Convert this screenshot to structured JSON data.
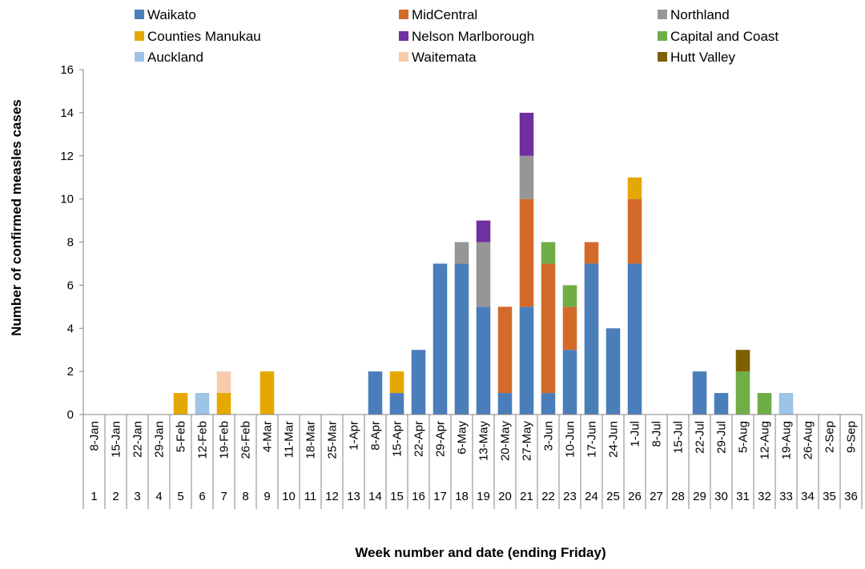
{
  "chart_data": {
    "type": "bar",
    "stacked": true,
    "title": "",
    "ylabel": "Number of confirmed measles cases",
    "xlabel": "Week number and date (ending Friday)",
    "ylim": [
      0,
      16
    ],
    "yticks": [
      0,
      2,
      4,
      6,
      8,
      10,
      12,
      14,
      16
    ],
    "grid": false,
    "legend_position": "top",
    "categories": [
      "8-Jan",
      "15-Jan",
      "22-Jan",
      "29-Jan",
      "5-Feb",
      "12-Feb",
      "19-Feb",
      "26-Feb",
      "4-Mar",
      "11-Mar",
      "18-Mar",
      "25-Mar",
      "1-Apr",
      "8-Apr",
      "15-Apr",
      "22-Apr",
      "29-Apr",
      "6-May",
      "13-May",
      "20-May",
      "27-May",
      "3-Jun",
      "10-Jun",
      "17-Jun",
      "24-Jun",
      "1-Jul",
      "8-Jul",
      "15-Jul",
      "22-Jul",
      "29-Jul",
      "5-Aug",
      "12-Aug",
      "19-Aug",
      "26-Aug",
      "2-Sep",
      "9-Sep"
    ],
    "week_numbers": [
      "1",
      "2",
      "3",
      "4",
      "5",
      "6",
      "7",
      "8",
      "9",
      "10",
      "11",
      "12",
      "13",
      "14",
      "15",
      "16",
      "17",
      "18",
      "19",
      "20",
      "21",
      "22",
      "23",
      "24",
      "25",
      "26",
      "27",
      "28",
      "29",
      "30",
      "31",
      "32",
      "33",
      "34",
      "35",
      "36"
    ],
    "series": [
      {
        "name": "Waikato",
        "color": "#4A7EBB",
        "values": [
          0,
          0,
          0,
          0,
          0,
          0,
          0,
          0,
          0,
          0,
          0,
          0,
          0,
          2,
          1,
          3,
          7,
          7,
          5,
          1,
          5,
          1,
          3,
          7,
          4,
          7,
          0,
          0,
          2,
          1,
          0,
          0,
          0,
          0,
          0,
          0
        ]
      },
      {
        "name": "MidCentral",
        "color": "#D46A2A",
        "values": [
          0,
          0,
          0,
          0,
          0,
          0,
          0,
          0,
          0,
          0,
          0,
          0,
          0,
          0,
          0,
          0,
          0,
          0,
          0,
          4,
          5,
          6,
          2,
          1,
          0,
          3,
          0,
          0,
          0,
          0,
          0,
          0,
          0,
          0,
          0,
          0
        ]
      },
      {
        "name": "Northland",
        "color": "#969696",
        "values": [
          0,
          0,
          0,
          0,
          0,
          0,
          0,
          0,
          0,
          0,
          0,
          0,
          0,
          0,
          0,
          0,
          0,
          1,
          3,
          0,
          2,
          0,
          0,
          0,
          0,
          0,
          0,
          0,
          0,
          0,
          0,
          0,
          0,
          0,
          0,
          0
        ]
      },
      {
        "name": "Counties Manukau",
        "color": "#E5A800",
        "values": [
          0,
          0,
          0,
          0,
          1,
          0,
          1,
          0,
          2,
          0,
          0,
          0,
          0,
          0,
          1,
          0,
          0,
          0,
          0,
          0,
          0,
          0,
          0,
          0,
          0,
          1,
          0,
          0,
          0,
          0,
          0,
          0,
          0,
          0,
          0,
          0
        ]
      },
      {
        "name": "Nelson Marlborough",
        "color": "#7030A0",
        "values": [
          0,
          0,
          0,
          0,
          0,
          0,
          0,
          0,
          0,
          0,
          0,
          0,
          0,
          0,
          0,
          0,
          0,
          0,
          1,
          0,
          2,
          0,
          0,
          0,
          0,
          0,
          0,
          0,
          0,
          0,
          0,
          0,
          0,
          0,
          0,
          0
        ]
      },
      {
        "name": "Capital and Coast",
        "color": "#70AD47",
        "values": [
          0,
          0,
          0,
          0,
          0,
          0,
          0,
          0,
          0,
          0,
          0,
          0,
          0,
          0,
          0,
          0,
          0,
          0,
          0,
          0,
          0,
          1,
          1,
          0,
          0,
          0,
          0,
          0,
          0,
          0,
          2,
          1,
          0,
          0,
          0,
          0
        ]
      },
      {
        "name": "Auckland",
        "color": "#9DC3E6",
        "values": [
          0,
          0,
          0,
          0,
          0,
          1,
          0,
          0,
          0,
          0,
          0,
          0,
          0,
          0,
          0,
          0,
          0,
          0,
          0,
          0,
          0,
          0,
          0,
          0,
          0,
          0,
          0,
          0,
          0,
          0,
          0,
          0,
          1,
          0,
          0,
          0
        ]
      },
      {
        "name": "Waitemata",
        "color": "#F8CBAD",
        "values": [
          0,
          0,
          0,
          0,
          0,
          0,
          1,
          0,
          0,
          0,
          0,
          0,
          0,
          0,
          0,
          0,
          0,
          0,
          0,
          0,
          0,
          0,
          0,
          0,
          0,
          0,
          0,
          0,
          0,
          0,
          0,
          0,
          0,
          0,
          0,
          0
        ]
      },
      {
        "name": "Hutt Valley",
        "color": "#7F6000",
        "values": [
          0,
          0,
          0,
          0,
          0,
          0,
          0,
          0,
          0,
          0,
          0,
          0,
          0,
          0,
          0,
          0,
          0,
          0,
          0,
          0,
          0,
          0,
          0,
          0,
          0,
          0,
          0,
          0,
          0,
          0,
          1,
          0,
          0,
          0,
          0,
          0
        ]
      }
    ]
  }
}
